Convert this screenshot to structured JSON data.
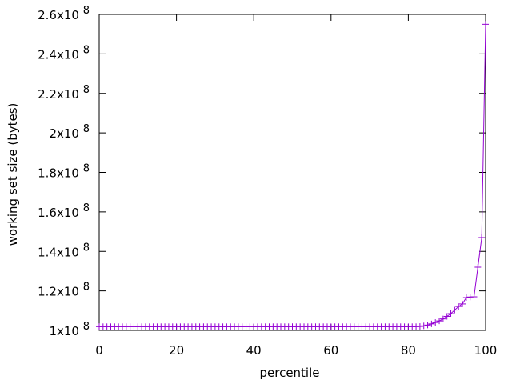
{
  "chart_data": {
    "type": "line",
    "xlabel": "percentile",
    "ylabel": "working set size (bytes)",
    "xlim": [
      0,
      100
    ],
    "ylim": [
      100000000,
      260000000
    ],
    "xticks": [
      {
        "value": 0,
        "label": "0"
      },
      {
        "value": 20,
        "label": "20"
      },
      {
        "value": 40,
        "label": "40"
      },
      {
        "value": 60,
        "label": "60"
      },
      {
        "value": 80,
        "label": "80"
      },
      {
        "value": 100,
        "label": "100"
      }
    ],
    "yticks": [
      {
        "value": 100000000,
        "mantissa": "1x10",
        "exponent": "8"
      },
      {
        "value": 120000000,
        "mantissa": "1.2x10",
        "exponent": "8"
      },
      {
        "value": 140000000,
        "mantissa": "1.4x10",
        "exponent": "8"
      },
      {
        "value": 160000000,
        "mantissa": "1.6x10",
        "exponent": "8"
      },
      {
        "value": 180000000,
        "mantissa": "1.8x10",
        "exponent": "8"
      },
      {
        "value": 200000000,
        "mantissa": "2x10",
        "exponent": "8"
      },
      {
        "value": 220000000,
        "mantissa": "2.2x10",
        "exponent": "8"
      },
      {
        "value": 240000000,
        "mantissa": "2.4x10",
        "exponent": "8"
      },
      {
        "value": 260000000,
        "mantissa": "2.6x10",
        "exponent": "8"
      }
    ],
    "grid": false,
    "legend": "none",
    "series_color": "#9400d3",
    "series": [
      {
        "marker": "plus",
        "x": [
          0,
          1,
          2,
          3,
          4,
          5,
          6,
          7,
          8,
          9,
          10,
          11,
          12,
          13,
          14,
          15,
          16,
          17,
          18,
          19,
          20,
          21,
          22,
          23,
          24,
          25,
          26,
          27,
          28,
          29,
          30,
          31,
          32,
          33,
          34,
          35,
          36,
          37,
          38,
          39,
          40,
          41,
          42,
          43,
          44,
          45,
          46,
          47,
          48,
          49,
          50,
          51,
          52,
          53,
          54,
          55,
          56,
          57,
          58,
          59,
          60,
          61,
          62,
          63,
          64,
          65,
          66,
          67,
          68,
          69,
          70,
          71,
          72,
          73,
          74,
          75,
          76,
          77,
          78,
          79,
          80,
          81,
          82,
          83,
          84,
          85,
          86,
          87,
          88,
          89,
          90,
          91,
          92,
          93,
          94,
          95,
          96,
          97,
          98,
          99,
          100
        ],
        "values": [
          101900000,
          101900000,
          101900000,
          101900000,
          101900000,
          101900000,
          101900000,
          101900000,
          101900000,
          101900000,
          101900000,
          101900000,
          101900000,
          101900000,
          101900000,
          101900000,
          101900000,
          101900000,
          101900000,
          101900000,
          101900000,
          101900000,
          101900000,
          101900000,
          101900000,
          101900000,
          101900000,
          101900000,
          101900000,
          101900000,
          101900000,
          101900000,
          101900000,
          101900000,
          101900000,
          101900000,
          101900000,
          101900000,
          101900000,
          101900000,
          101900000,
          101900000,
          101900000,
          101900000,
          101900000,
          101900000,
          101900000,
          101900000,
          101900000,
          101900000,
          101900000,
          101900000,
          101900000,
          101900000,
          101900000,
          101900000,
          101900000,
          101900000,
          101900000,
          101900000,
          101900000,
          101900000,
          101900000,
          101900000,
          101900000,
          101900000,
          101900000,
          101900000,
          101900000,
          101900000,
          101900000,
          101900000,
          101900000,
          101900000,
          101900000,
          101900000,
          101900000,
          101900000,
          101900000,
          101900000,
          101900000,
          101900000,
          101900000,
          102000000,
          102300000,
          102700000,
          103300000,
          104000000,
          104800000,
          105800000,
          107100000,
          108500000,
          110300000,
          112100000,
          113400000,
          116600000,
          116900000,
          117000000,
          132000000,
          147000000,
          255000000
        ]
      }
    ]
  }
}
